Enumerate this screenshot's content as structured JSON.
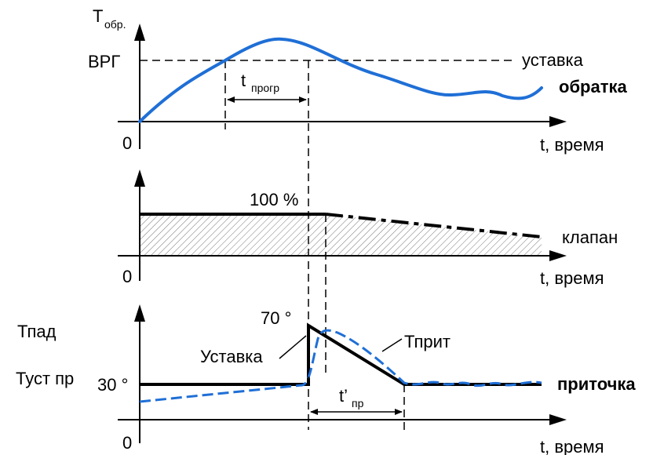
{
  "panel_top": {
    "y_axis_label": "T",
    "y_axis_label_sub": "обр.",
    "level_label": "ВРГ",
    "origin_label": "0",
    "setpoint_label": "уставка",
    "curve_label": "обратка",
    "interval_label": "t",
    "interval_label_sub": "прогр",
    "x_axis_label": "t, время",
    "colors": {
      "curve": "#1f6fd6"
    }
  },
  "panel_middle": {
    "level_label": "100 %",
    "origin_label": "0",
    "curve_label": "клапан",
    "x_axis_label": "t, время"
  },
  "panel_bottom": {
    "t_pad_label": "Тпад",
    "t_ust_label": "Туст пр",
    "level_30_label": "30 °",
    "level_70_label": "70 °",
    "setpoint_curve_label": "Уставка",
    "supply_curve_label": "Тприт",
    "interval_label": "t’",
    "interval_label_sub": "пр",
    "origin_label": "0",
    "curve_label": "приточка",
    "x_axis_label": "t, время",
    "colors": {
      "curve": "#1f6fd6"
    }
  }
}
